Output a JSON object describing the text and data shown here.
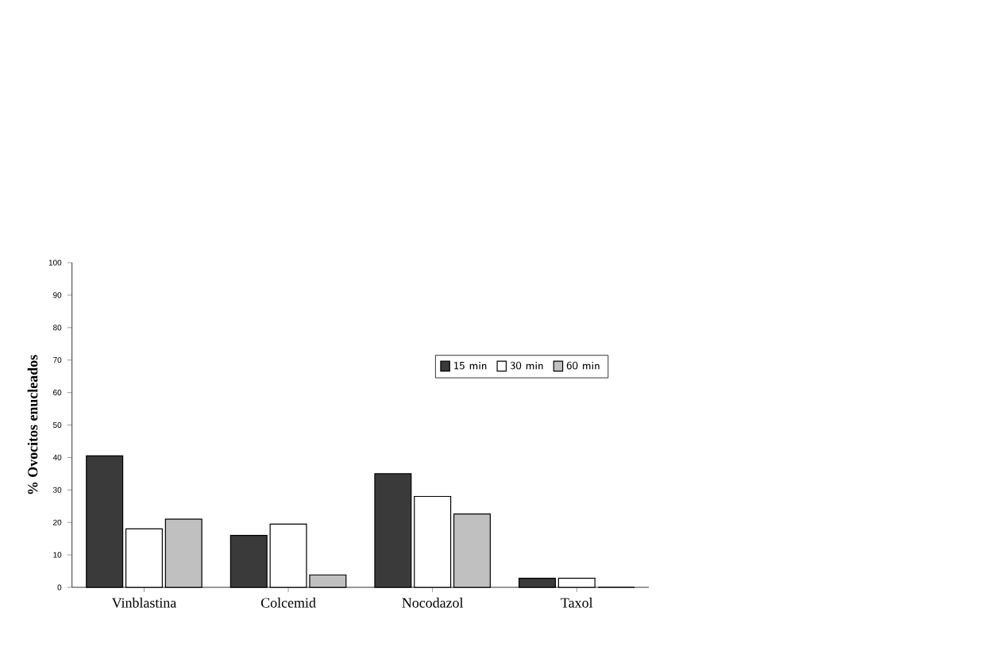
{
  "chart_data": {
    "type": "bar",
    "ylabel": "% Ovocitos enucleados",
    "categories": [
      "Vinblastina",
      "Colcemid",
      "Nocodazol",
      "Taxol"
    ],
    "series": [
      {
        "name": "15 min",
        "color": "#3a3a3a",
        "values": [
          40.5,
          16,
          35,
          2.8
        ]
      },
      {
        "name": "30 min",
        "color": "#ffffff",
        "values": [
          18,
          19.5,
          28,
          2.8
        ]
      },
      {
        "name": "60 min",
        "color": "#c0c0c0",
        "values": [
          21,
          3.8,
          22.6,
          0
        ]
      }
    ],
    "ylim": [
      0,
      100
    ],
    "yticks": [
      0,
      10,
      20,
      30,
      40,
      50,
      60,
      70,
      80,
      90,
      100
    ],
    "legend": "right"
  }
}
